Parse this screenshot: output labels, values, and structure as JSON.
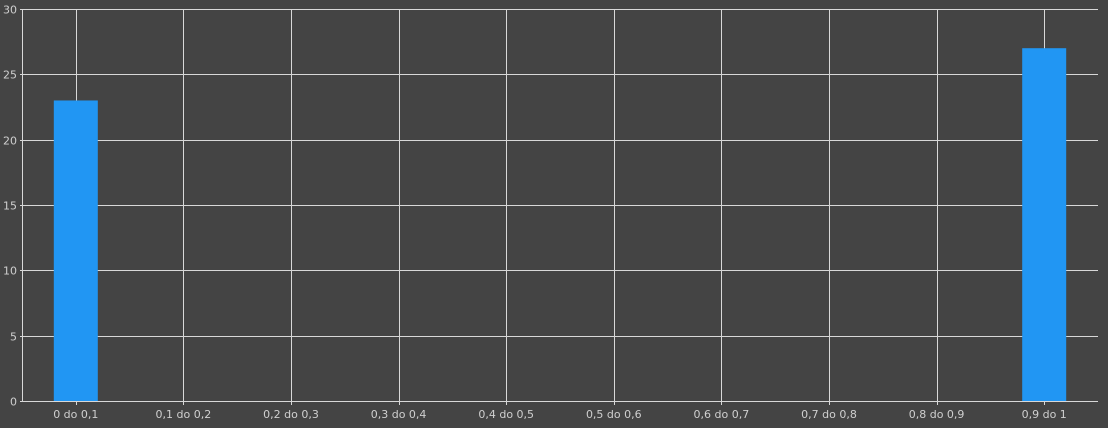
{
  "chart_data": {
    "type": "bar",
    "categories": [
      "0 do 0,1",
      "0,1 do 0,2",
      "0,2 do 0,3",
      "0,3 do 0,4",
      "0,4 do 0,5",
      "0,5 do 0,6",
      "0,6 do 0,7",
      "0,7 do 0,8",
      "0,8 do 0,9",
      "0,9 do 1"
    ],
    "values": [
      23,
      0,
      0,
      0,
      0,
      0,
      0,
      0,
      0,
      27
    ],
    "title": "",
    "xlabel": "",
    "ylabel": "",
    "ylim": [
      0,
      30
    ],
    "yticks": [
      0,
      5,
      10,
      15,
      20,
      25,
      30
    ],
    "grid": true,
    "bar_color": "#2196f3",
    "background_color": "#444444",
    "grid_color": "#d8d8d8",
    "label_color": "#cfcfcf"
  }
}
